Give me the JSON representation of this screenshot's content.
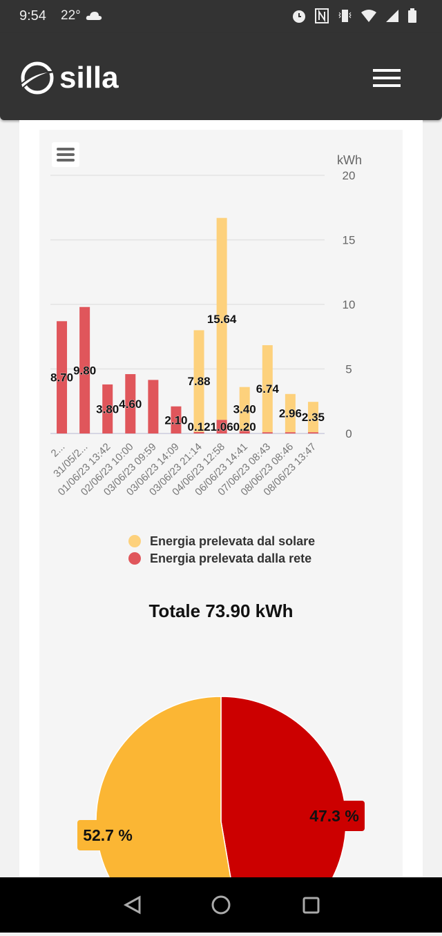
{
  "status_bar": {
    "time": "9:54",
    "weather": "22°",
    "icons": [
      "cloud-icon",
      "alarm-icon",
      "nfc-icon",
      "vibrate-icon",
      "wifi-icon",
      "signal-icon",
      "battery-icon"
    ]
  },
  "header": {
    "brand": "silla",
    "menu_icon": "hamburger-icon"
  },
  "chart_data": [
    {
      "type": "bar",
      "stacked": true,
      "yunit": "kWh",
      "ylim": [
        0,
        20
      ],
      "yticks": [
        "0",
        "5",
        "10",
        "15",
        "20"
      ],
      "grid": true,
      "legend": "bottom",
      "categories": [
        "2...",
        "31/05/2...",
        "01/06/23 13:42",
        "02/06/23 10:00",
        "03/06/23 09:59",
        "03/06/23 14:09",
        "03/06/23 21:14",
        "04/06/23 12:58",
        "06/06/23 14:41",
        "07/06/23 08:43",
        "08/06/23 08:46",
        "08/06/23 13:47"
      ],
      "series": [
        {
          "name": "Energia prelevata dal solare",
          "color": "#fdd17c",
          "values": [
            0,
            0,
            0,
            0,
            0,
            0,
            7.88,
            15.64,
            3.4,
            6.74,
            2.96,
            2.35
          ],
          "labels": [
            "",
            "",
            "",
            "",
            "",
            "",
            "7.88",
            "15.64",
            "3.40",
            "6.74",
            "2.96",
            "2.35"
          ]
        },
        {
          "name": "Energia prelevata dalla rete",
          "color": "#e0565b",
          "values": [
            8.7,
            9.8,
            3.8,
            4.6,
            4.15,
            2.1,
            0.12,
            1.06,
            0.2,
            0.1,
            0.1,
            0.1
          ],
          "labels": [
            "8.70",
            "9.80",
            "3.80",
            "4.60",
            "",
            "2.10",
            "0.12",
            "1.06",
            "0.20",
            "",
            "",
            ""
          ]
        }
      ]
    },
    {
      "type": "pie",
      "title": "Totale 73.90 kWh",
      "slices": [
        {
          "name": "Energia prelevata dal solare",
          "percent": 52.7,
          "label": "52.7 %",
          "color": "#fbb634"
        },
        {
          "name": "Energia prelevata dalla rete",
          "percent": 47.3,
          "label": "47.3 %",
          "color": "#cc0000"
        }
      ]
    }
  ]
}
